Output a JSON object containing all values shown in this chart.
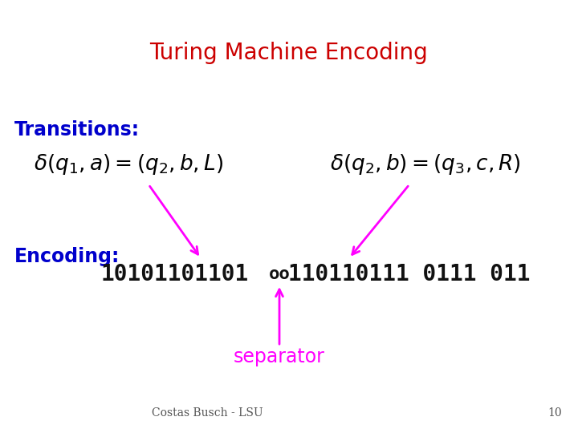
{
  "title": "Turing Machine Encoding",
  "title_color": "#cc0000",
  "title_fontsize": 20,
  "transitions_label": "Transitions:",
  "transitions_label_color": "#0000cc",
  "transitions_label_fontsize": 17,
  "encoding_label": "Encoding:",
  "encoding_label_color": "#0000cc",
  "encoding_label_fontsize": 17,
  "formula1": "$\\delta(q_1,a)=(q_2,b,L)$",
  "formula2": "$\\delta(q_2,b)=(q_3,c,R)$",
  "formula_color": "#000000",
  "formula_fontsize": 19,
  "encoding_text1": "10101101101",
  "encoding_text2": "oo",
  "encoding_text3": "110110111 0111 011",
  "encoding_text_color": "#111111",
  "encoding_fontsize": 20,
  "separator_text": "separator",
  "separator_color": "#ff00ff",
  "separator_fontsize": 17,
  "arrow_color": "#ff00ff",
  "footer_text": "Costas Busch - LSU",
  "footer_number": "10",
  "footer_fontsize": 10,
  "background_color": "#ffffff"
}
